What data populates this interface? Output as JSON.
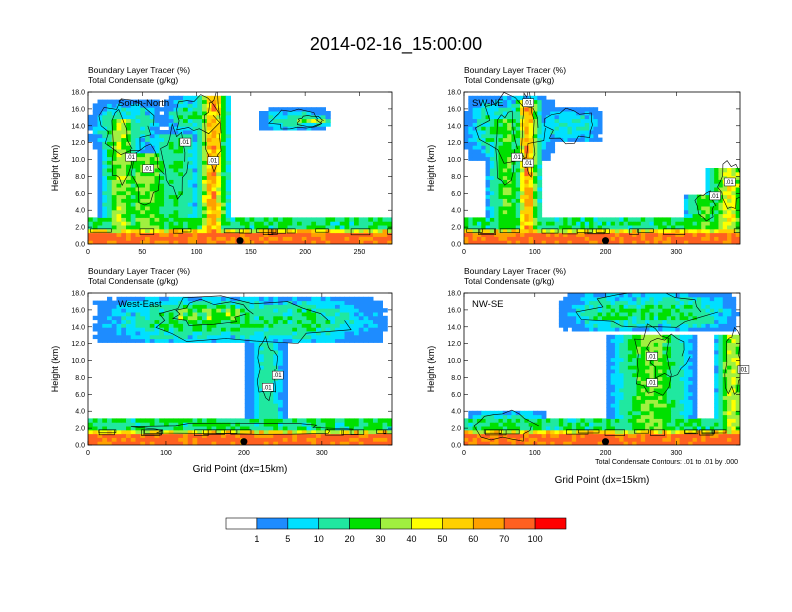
{
  "title": "2014-02-16_15:00:00",
  "colorbar": {
    "colors": [
      "#ffffff",
      "#1e8cff",
      "#00e0ff",
      "#20e8a0",
      "#00e000",
      "#a0f040",
      "#ffff00",
      "#ffd000",
      "#ffa000",
      "#ff6020",
      "#ff0000"
    ],
    "labels": [
      "1",
      "5",
      "10",
      "20",
      "30",
      "40",
      "50",
      "60",
      "70",
      "100"
    ]
  },
  "footnote": "Total Condensate Contours: .01 to .01 by .000",
  "chart_data": [
    {
      "type": "heatmap",
      "header_line1": "Boundary Layer Tracer   (%)",
      "header_line2": "Total Condensate   (g/kg)",
      "cross_section": "South-North",
      "xlabel": "",
      "ylabel": "Height (km)",
      "xlim": [
        0,
        280
      ],
      "ylim": [
        0,
        18
      ],
      "x_ticks": [
        0,
        50,
        100,
        150,
        200,
        250
      ],
      "y_ticks": [
        "0.0",
        "2.0",
        "4.0",
        "6.0",
        "8.0",
        "10.0",
        "12.0",
        "14.0",
        "16.0",
        "18.0"
      ],
      "contour_labels": [
        ".01",
        ".01",
        ".01",
        ".01"
      ],
      "marker_x": 140,
      "seed": 11,
      "plumes": [
        {
          "x": 115,
          "w": 7,
          "top": 17.5,
          "core": 80
        },
        {
          "x": 30,
          "w": 9,
          "top": 15,
          "core": 45
        },
        {
          "x": 55,
          "w": 14,
          "top": 11,
          "core": 40
        },
        {
          "x": 80,
          "w": 12,
          "top": 13,
          "core": 25
        }
      ],
      "bands": [
        {
          "x0": 0,
          "x1": 70,
          "z0": 11,
          "z1": 17,
          "v": 15
        },
        {
          "x0": 70,
          "x1": 130,
          "z0": 13,
          "z1": 17.5,
          "v": 20
        },
        {
          "x0": 155,
          "x1": 225,
          "z0": 13.5,
          "z1": 16,
          "v": 15
        },
        {
          "x0": 185,
          "x1": 225,
          "z0": 14,
          "z1": 15.2,
          "v": 35
        }
      ]
    },
    {
      "type": "heatmap",
      "header_line1": "Boundary Layer Tracer   (%)",
      "header_line2": "Total Condensate   (g/kg)",
      "cross_section": "SW-NE",
      "xlabel": "",
      "ylabel": "Height (km)",
      "xlim": [
        0,
        390
      ],
      "ylim": [
        0,
        18
      ],
      "x_ticks": [
        0,
        100,
        200,
        300
      ],
      "y_ticks": [
        "0.0",
        "2.0",
        "4.0",
        "6.0",
        "8.0",
        "10.0",
        "12.0",
        "14.0",
        "16.0",
        "18.0"
      ],
      "contour_labels": [
        ".01",
        ".01",
        ".01",
        ".01",
        ".01"
      ],
      "marker_x": 200,
      "seed": 23,
      "plumes": [
        {
          "x": 90,
          "w": 9,
          "top": 17,
          "core": 80
        },
        {
          "x": 60,
          "w": 14,
          "top": 15,
          "core": 35
        },
        {
          "x": 375,
          "w": 16,
          "top": 9,
          "core": 55
        },
        {
          "x": 340,
          "w": 14,
          "top": 6,
          "core": 35
        }
      ],
      "bands": [
        {
          "x0": 0,
          "x1": 130,
          "z0": 10,
          "z1": 17.5,
          "v": 20
        },
        {
          "x0": 100,
          "x1": 200,
          "z0": 12,
          "z1": 16,
          "v": 12
        }
      ]
    },
    {
      "type": "heatmap",
      "header_line1": "Boundary Layer Tracer   (%)",
      "header_line2": "Total Condensate   (g/kg)",
      "cross_section": "West-East",
      "xlabel": "Grid Point (dx=15km)",
      "ylabel": "Height (km)",
      "xlim": [
        0,
        390
      ],
      "ylim": [
        0,
        18
      ],
      "x_ticks": [
        0,
        100,
        200,
        300
      ],
      "y_ticks": [
        "0.0",
        "2.0",
        "4.0",
        "6.0",
        "8.0",
        "10.0",
        "12.0",
        "14.0",
        "16.0",
        "18.0"
      ],
      "contour_labels": [
        ".01",
        ".01"
      ],
      "marker_x": 200,
      "seed": 37,
      "plumes": [
        {
          "x": 230,
          "w": 12,
          "top": 12,
          "core": 18
        }
      ],
      "bands": [
        {
          "x0": 0,
          "x1": 390,
          "z0": 12,
          "z1": 17.5,
          "v": 22
        },
        {
          "x0": 80,
          "x1": 230,
          "z0": 14,
          "z1": 17,
          "v": 35
        },
        {
          "x0": 0,
          "x1": 390,
          "z0": 1.2,
          "z1": 2.6,
          "v": 12
        }
      ]
    },
    {
      "type": "heatmap",
      "header_line1": "Boundary Layer Tracer   (%)",
      "header_line2": "Total Condensate   (g/kg)",
      "cross_section": "NW-SE",
      "xlabel": "Grid Point (dx=15km)",
      "ylabel": "Height (km)",
      "xlim": [
        0,
        390
      ],
      "ylim": [
        0,
        18
      ],
      "x_ticks": [
        0,
        100,
        200,
        300
      ],
      "y_ticks": [
        "0.0",
        "2.0",
        "4.0",
        "6.0",
        "8.0",
        "10.0",
        "12.0",
        "14.0",
        "16.0",
        "18.0"
      ],
      "contour_labels": [
        ".01",
        ".01",
        ".01"
      ],
      "marker_x": 200,
      "seed": 53,
      "plumes": [
        {
          "x": 265,
          "w": 28,
          "top": 13,
          "core": 40
        },
        {
          "x": 380,
          "w": 12,
          "top": 13,
          "core": 50
        }
      ],
      "bands": [
        {
          "x0": 130,
          "x1": 390,
          "z0": 13.5,
          "z1": 18,
          "v": 22
        },
        {
          "x0": 0,
          "x1": 120,
          "z0": 0.5,
          "z1": 4,
          "v": 22
        },
        {
          "x0": 245,
          "x1": 330,
          "z0": 8,
          "z1": 13,
          "v": 15
        }
      ]
    }
  ]
}
